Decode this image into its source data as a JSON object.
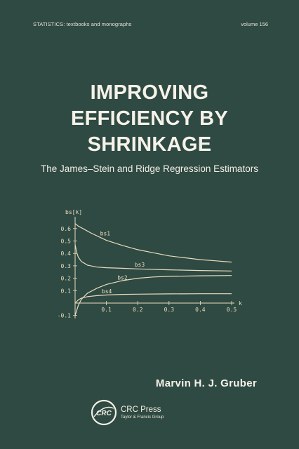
{
  "header": {
    "series": "STATISTICS:  textbooks and monographs",
    "volume": "volume 156"
  },
  "book": {
    "title_lines": [
      "IMPROVING",
      "EFFICIENCY BY",
      "SHRINKAGE"
    ],
    "subtitle": "The James–Stein and Ridge Regression Estimators",
    "author": "Marvin H. J. Gruber"
  },
  "publisher": {
    "logo_text": "CRC",
    "name": "CRC Press",
    "group": "Taylor & Francis Group"
  },
  "colors": {
    "background": "#2e4a42",
    "text": "#f3efe6",
    "curve": "#e9dcc0"
  },
  "chart_data": {
    "type": "line",
    "ylabel": "bs[k]",
    "xlabel": "k",
    "xlim": [
      0,
      0.5
    ],
    "ylim": [
      -0.1,
      0.65
    ],
    "x_ticks": [
      "0.1",
      "0.2",
      "0.3",
      "0.4",
      "0.5"
    ],
    "y_ticks": [
      "-0.1",
      "0.1",
      "0.2",
      "0.3",
      "0.4",
      "0.5",
      "0.6"
    ],
    "series": [
      {
        "name": "bs1",
        "x": [
          0,
          0.01,
          0.025,
          0.05,
          0.1,
          0.15,
          0.2,
          0.25,
          0.3,
          0.35,
          0.4,
          0.45,
          0.5
        ],
        "values": [
          0.64,
          0.62,
          0.6,
          0.565,
          0.505,
          0.465,
          0.43,
          0.405,
          0.38,
          0.365,
          0.35,
          0.34,
          0.33
        ]
      },
      {
        "name": "bs3",
        "x": [
          0,
          0.005,
          0.01,
          0.02,
          0.04,
          0.07,
          0.1,
          0.15,
          0.2,
          0.3,
          0.4,
          0.5
        ],
        "values": [
          0.47,
          0.41,
          0.37,
          0.335,
          0.305,
          0.29,
          0.285,
          0.28,
          0.275,
          0.268,
          0.262,
          0.258
        ]
      },
      {
        "name": "bs2",
        "x": [
          0,
          0.01,
          0.02,
          0.04,
          0.07,
          0.1,
          0.15,
          0.2,
          0.25,
          0.3,
          0.4,
          0.5
        ],
        "values": [
          -0.1,
          -0.02,
          0.03,
          0.08,
          0.12,
          0.15,
          0.18,
          0.2,
          0.21,
          0.215,
          0.22,
          0.222
        ]
      },
      {
        "name": "bs4",
        "x": [
          0,
          0.01,
          0.02,
          0.04,
          0.07,
          0.1,
          0.15,
          0.2,
          0.3,
          0.4,
          0.5
        ],
        "values": [
          0.0,
          0.025,
          0.04,
          0.052,
          0.06,
          0.065,
          0.07,
          0.072,
          0.074,
          0.075,
          0.075
        ]
      }
    ]
  }
}
